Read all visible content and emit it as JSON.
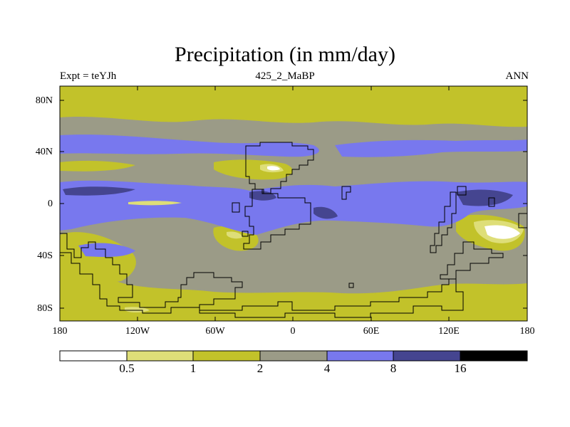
{
  "title": "Precipitation (in mm/day)",
  "subtitle_left": "Expt = teYJh",
  "subtitle_center": "425_2_MaBP",
  "subtitle_right": "ANN",
  "lat_ticks": [
    "80N",
    "40N",
    "0",
    "40S",
    "80S"
  ],
  "lon_ticks": [
    "180",
    "120W",
    "60W",
    "0",
    "60E",
    "120E",
    "180"
  ],
  "colorbar": {
    "labels": [
      "0.5",
      "1",
      "2",
      "4",
      "8",
      "16"
    ],
    "colors": [
      "#ffffff",
      "#dede78",
      "#c2c22a",
      "#9b9b87",
      "#7878ee",
      "#454590",
      "#000000"
    ]
  },
  "colors": {
    "land_outline": "#000000",
    "background": "#ffffff"
  }
}
